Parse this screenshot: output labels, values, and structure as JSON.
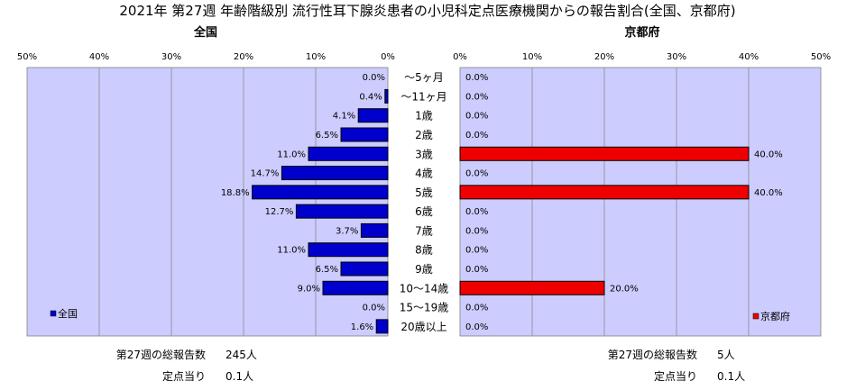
{
  "chart_data": {
    "type": "bar",
    "title": "2021年 第27週 年齢階級別 流行性耳下腺炎患者の小児科定点医療機関からの報告割合(全国、京都府)",
    "categories": [
      "～5ヶ月",
      "～11ヶ月",
      "1歳",
      "2歳",
      "3歳",
      "4歳",
      "5歳",
      "6歳",
      "7歳",
      "8歳",
      "9歳",
      "10～14歳",
      "15～19歳",
      "20歳以上"
    ],
    "axis_ticks": [
      "50%",
      "40%",
      "30%",
      "20%",
      "10%",
      "0%"
    ],
    "axis_ticks_right": [
      "0%",
      "10%",
      "20%",
      "30%",
      "40%",
      "50%"
    ],
    "xlim": [
      0,
      50
    ],
    "series": [
      {
        "name": "全国",
        "panel_title": "全国",
        "legend": "全国",
        "color": "#0000cc",
        "values": [
          0.0,
          0.4,
          4.1,
          6.5,
          11.0,
          14.7,
          18.8,
          12.7,
          3.7,
          11.0,
          6.5,
          9.0,
          0.0,
          1.6
        ],
        "labels": [
          "0.0%",
          "0.4%",
          "4.1%",
          "6.5%",
          "11.0%",
          "14.7%",
          "18.8%",
          "12.7%",
          "3.7%",
          "11.0%",
          "6.5%",
          "9.0%",
          "0.0%",
          "1.6%"
        ]
      },
      {
        "name": "京都府",
        "panel_title": "京都府",
        "legend": "京都府",
        "color": "#ee0000",
        "values": [
          0.0,
          0.0,
          0.0,
          0.0,
          40.0,
          0.0,
          40.0,
          0.0,
          0.0,
          0.0,
          0.0,
          20.0,
          0.0,
          0.0
        ],
        "labels": [
          "0.0%",
          "0.0%",
          "0.0%",
          "0.0%",
          "40.0%",
          "0.0%",
          "40.0%",
          "0.0%",
          "0.0%",
          "0.0%",
          "0.0%",
          "20.0%",
          "0.0%",
          "0.0%"
        ]
      }
    ],
    "footer": {
      "left": {
        "total_label": "第27週の総報告数",
        "total_value": "245人",
        "per_label": "定点当り",
        "per_value": "0.1人"
      },
      "right": {
        "total_label": "第27週の総報告数",
        "total_value": "5人",
        "per_label": "定点当り",
        "per_value": "0.1人"
      }
    },
    "plot_bg": "#ccccff",
    "grid": true
  }
}
